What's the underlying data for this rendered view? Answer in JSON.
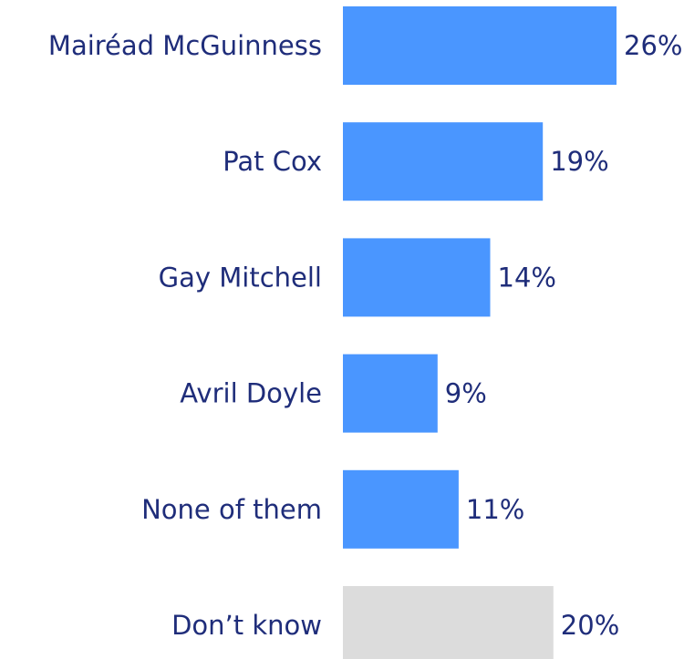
{
  "chart_data": {
    "type": "bar",
    "orientation": "horizontal",
    "categories": [
      "Mairéad McGuinness",
      "Pat Cox",
      "Gay Mitchell",
      "Avril Doyle",
      "None of them",
      "Don’t know"
    ],
    "values": [
      26,
      19,
      14,
      9,
      11,
      20
    ],
    "value_labels": [
      "26%",
      "19%",
      "14%",
      "9%",
      "11%",
      "20%"
    ],
    "bar_colors": [
      "#4a96ff",
      "#4a96ff",
      "#4a96ff",
      "#4a96ff",
      "#4a96ff",
      "#dcdcdc"
    ],
    "text_color": "#1f2d7a",
    "xlim": [
      0,
      26
    ],
    "grid": false,
    "legend": "none"
  }
}
